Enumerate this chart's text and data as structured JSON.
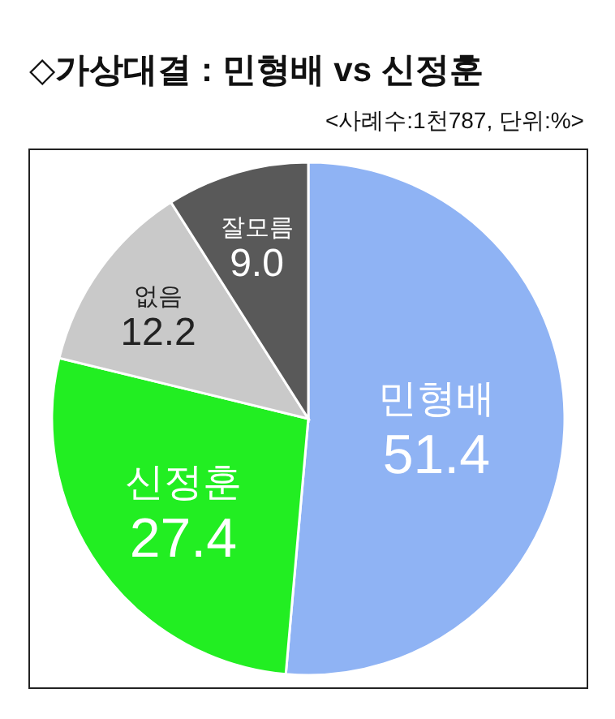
{
  "chart_data": {
    "type": "pie",
    "title": "◇가상대결 : 민형배 vs 신정훈",
    "subtitle": "<사례수:1천787, 단위:%>",
    "categories": [
      "민형배",
      "신정훈",
      "없음",
      "잘모름"
    ],
    "values": [
      51.4,
      27.4,
      12.2,
      9.0
    ],
    "value_labels": [
      "51.4",
      "27.4",
      "12.2",
      "9.0"
    ],
    "colors": [
      "#8fb3f4",
      "#22ee22",
      "#c9c9c9",
      "#595959"
    ]
  }
}
